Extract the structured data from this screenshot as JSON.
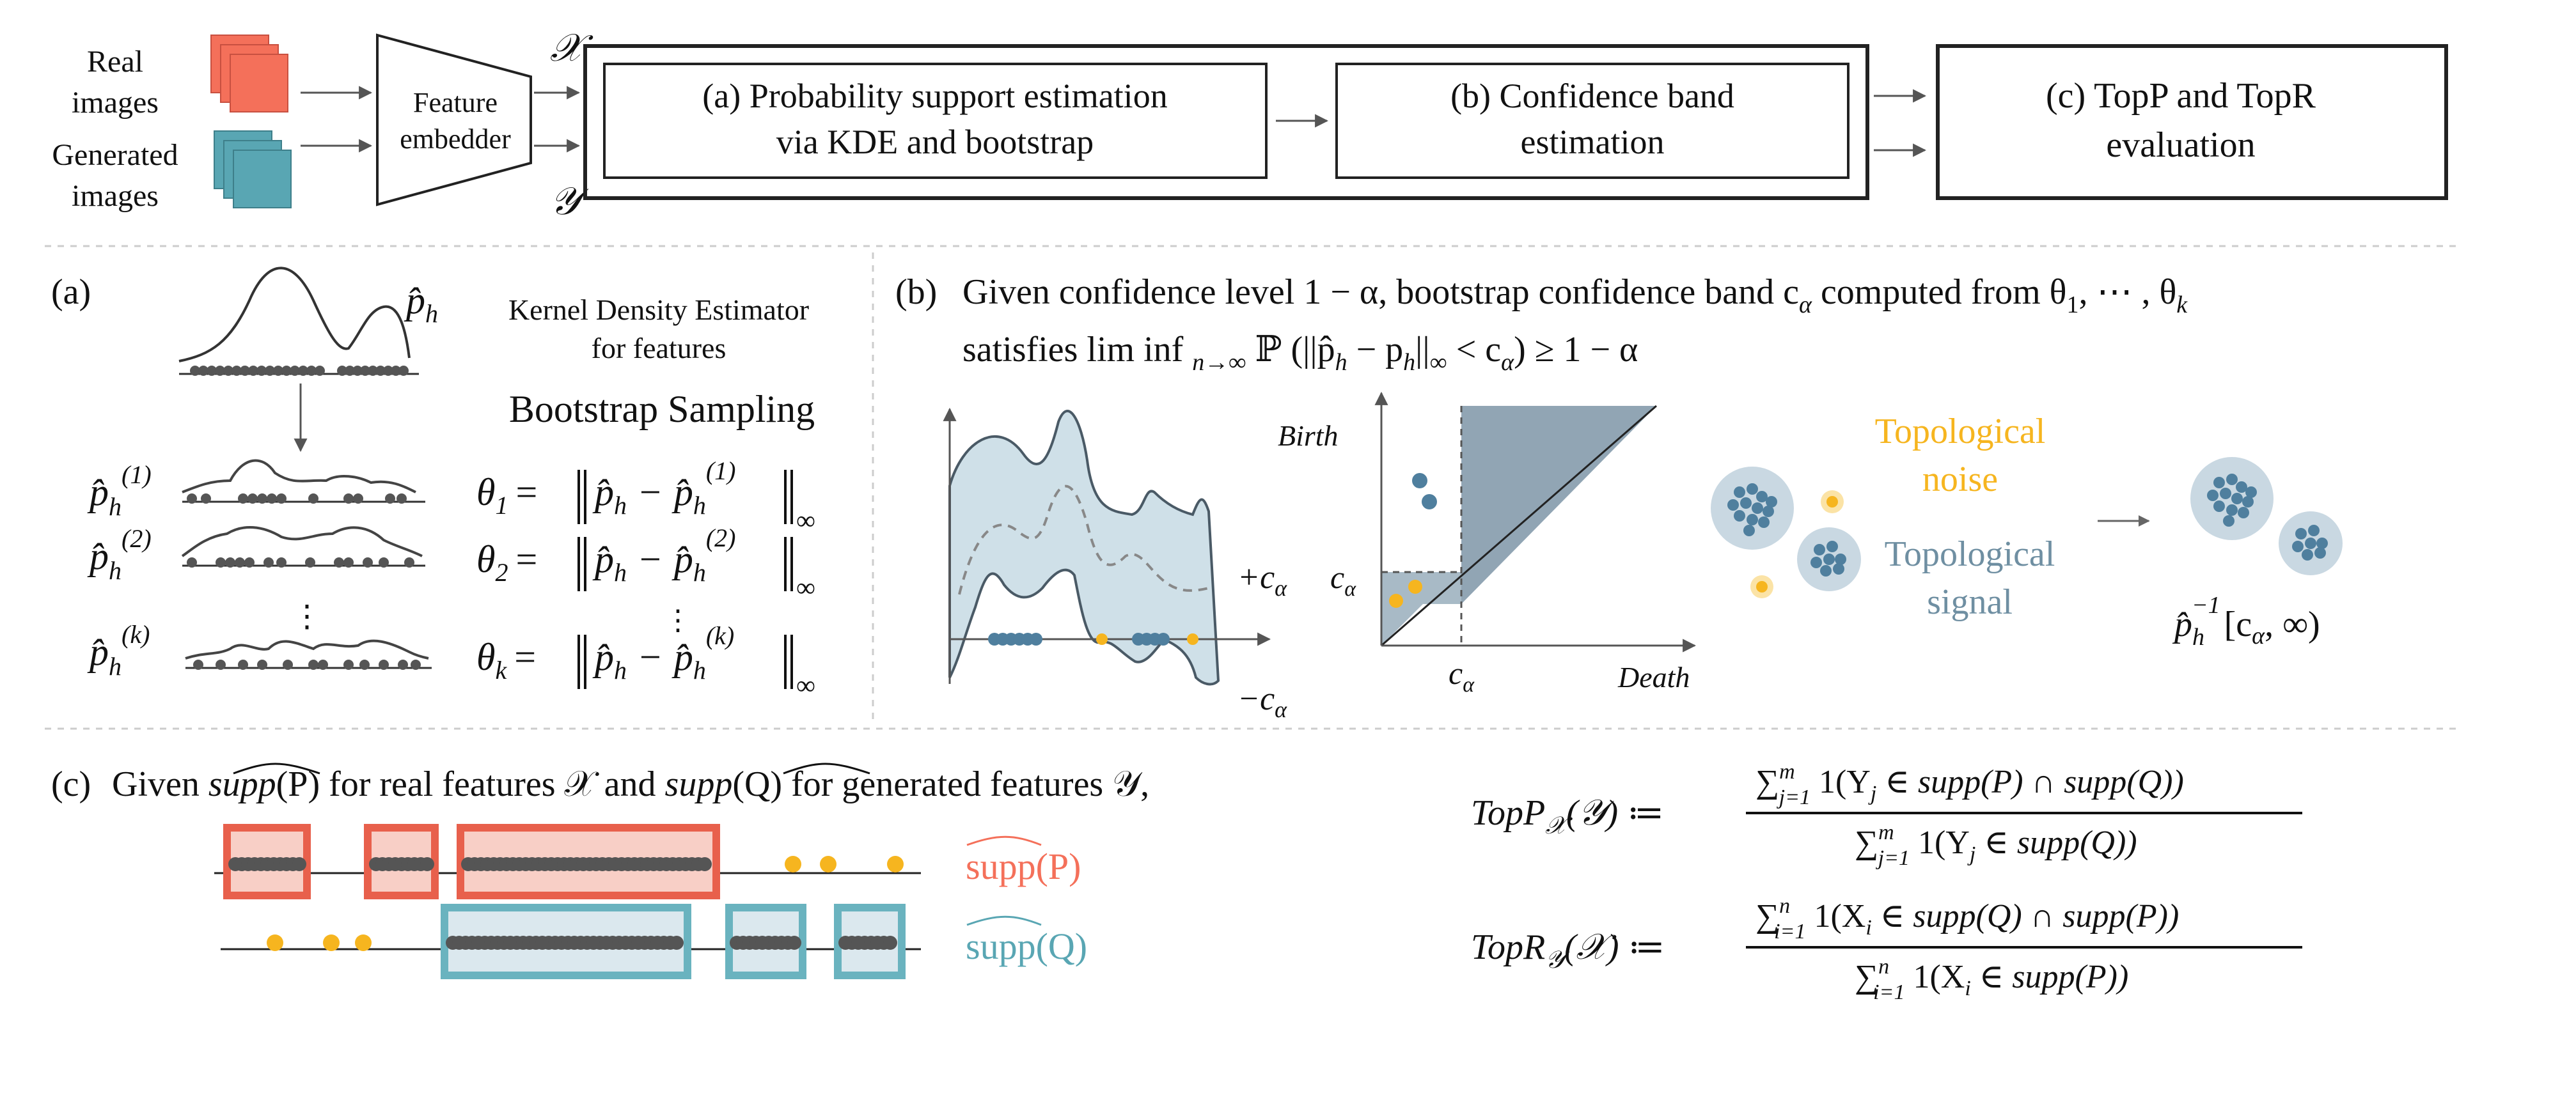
{
  "colors": {
    "real": "#f4705a",
    "real_border": "#e8604c",
    "generated": "#59a6b3",
    "generated_border": "#6ab3bf",
    "band_fill": "#cfe0e8",
    "band_stroke": "#4a5a66",
    "cluster": "#4f7f9e",
    "cluster_halo": "#c9d8e2",
    "noise": "#f6b51f",
    "noise_text": "#f6b51f",
    "signal_text": "#6f8fa2",
    "dots": "#555555"
  },
  "pipeline": {
    "real_label_line1": "Real",
    "real_label_line2": "images",
    "gen_label_line1": "Generated",
    "gen_label_line2": "images",
    "embedder_line1": "Feature",
    "embedder_line2": "embedder",
    "x_symbol": "𝒳",
    "y_symbol": "𝒴",
    "box_a_line1": "(a)  Probability support estimation",
    "box_a_line2": "via KDE and bootstrap",
    "box_b_line1": "(b) Confidence band",
    "box_b_line2": "estimation",
    "box_c_line1": "(c) TopP and TopR",
    "box_c_line2": "evaluation"
  },
  "panel_a": {
    "tag": "(a)",
    "p_hat": "p̂",
    "kde_line1": "Kernel Density Estimator",
    "kde_line2": "for features",
    "bootstrap": "Bootstrap Sampling",
    "sup1": "(1)",
    "sup2": "(2)",
    "supk": "(k)",
    "theta1": "θ",
    "theta_sub1": "1",
    "theta_sub2": "2",
    "theta_subk": "k",
    "sub_h": "h",
    "equals": "=",
    "minus": "−",
    "norm_sub": "∞",
    "vdots": "⋮"
  },
  "panel_b": {
    "tag": "(b)",
    "title_line1": "Given confidence level 1 − α, bootstrap confidence band  c",
    "title_line1_sub": "α",
    "title_line1_end": " computed from θ",
    "title_line1_end_sub1": "1",
    "title_line1_end_mid": ", ⋯ , θ",
    "title_line1_end_subk": "k",
    "title_line2_a": "satisfies lim inf ",
    "title_line2_sub": "n→∞",
    "title_line2_b": " ℙ (||p̂",
    "title_line2_h1": "h",
    "title_line2_c": "  − p",
    "title_line2_h2": "h",
    "title_line2_d": "||",
    "title_line2_inf": "∞",
    "title_line2_e": " < c",
    "title_line2_alpha": "α",
    "title_line2_f": ")  ≥ 1 − α",
    "plus_c": "+c",
    "minus_c": "−c",
    "alpha": "α",
    "birth": "Birth",
    "death": "Death",
    "c_alpha": "c",
    "topo_noise_line1": "Topological",
    "topo_noise_line2": "noise",
    "topo_signal_line1": "Topological",
    "topo_signal_line2": "signal",
    "preimage_p": "p̂",
    "preimage_h": "h",
    "preimage_exp": "−1",
    "preimage_rest_a": "[c",
    "preimage_rest_b": ", ∞)"
  },
  "panel_c": {
    "tag": "(c)",
    "given_a": "Given ",
    "supp_p": "supp",
    "given_b": "(P) for real features 𝒳 and ",
    "given_c": "(Q) for generated features 𝒴,",
    "supp_p_label": "supp(P)",
    "supp_q_label": "supp(Q)",
    "topp_lhs": "TopP",
    "topp_lhs_sub": "𝒳",
    "topp_lhs_arg": "(𝒴) ≔",
    "topp_num": "∑",
    "topp_num_sup": "m",
    "topp_num_sub": "j=1",
    "topp_num_body": " 1(Y",
    "topp_num_j": "j",
    "topp_num_rest": " ∈ ",
    "topp_num_tail": "(P) ∩ ",
    "topp_num_end": "(Q))",
    "topp_den_rest": " ∈ ",
    "topp_den_end": "(Q))",
    "topr_lhs": "TopR",
    "topr_lhs_sub": "𝒴",
    "topr_lhs_arg": "(𝒳) ≔",
    "topr_num_sup": "n",
    "topr_num_sub": "i=1",
    "topr_num_body": " 1(X",
    "topr_num_i": "i",
    "topr_num_tail": "(Q) ∩ ",
    "topr_num_end": "(P))",
    "topr_den_end": "(P))"
  }
}
